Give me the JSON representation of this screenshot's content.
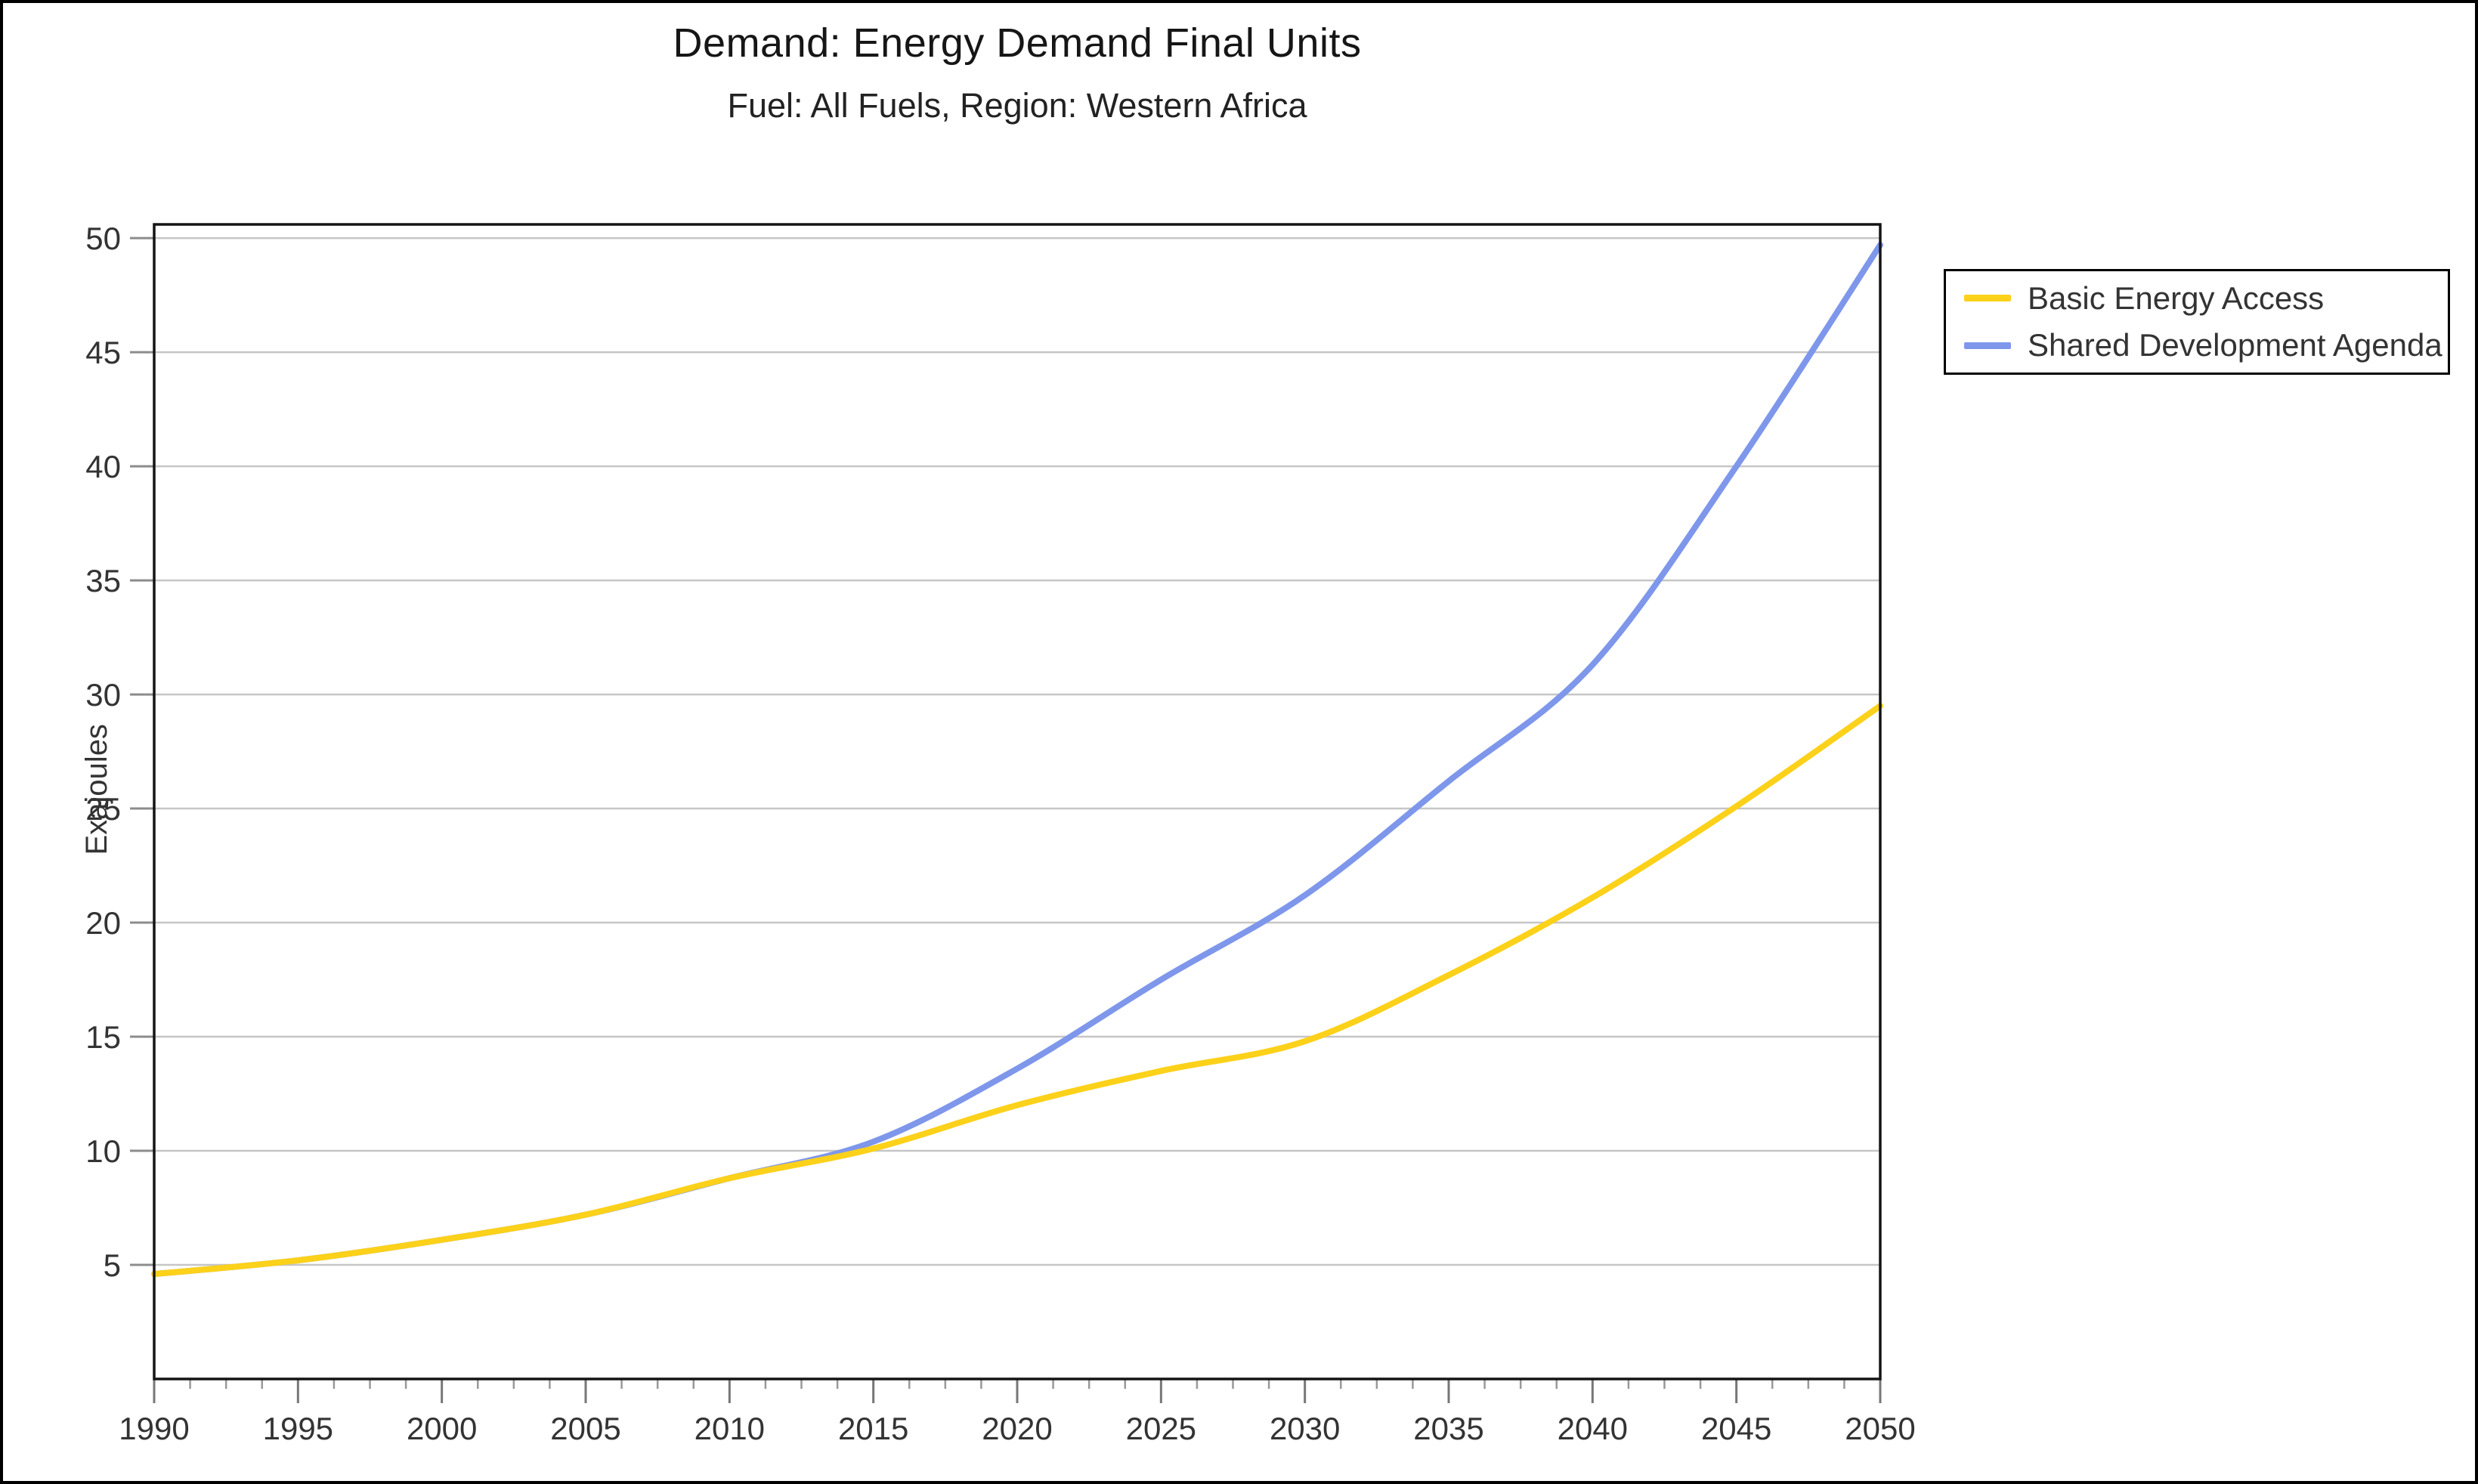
{
  "page": {
    "title": "Demand: Energy Demand Final Units",
    "subtitle": "Fuel: All Fuels, Region: Western Africa"
  },
  "chart_data": {
    "type": "line",
    "title": "Demand: Energy Demand Final Units",
    "subtitle": "Fuel: All Fuels, Region: Western Africa",
    "xlabel": "",
    "ylabel": "Exajoules",
    "x": [
      1990,
      1995,
      2000,
      2005,
      2010,
      2015,
      2020,
      2025,
      2030,
      2035,
      2040,
      2045,
      2050
    ],
    "series": [
      {
        "name": "Basic Energy Access",
        "color": "#FCD11A",
        "values": [
          4.6,
          5.2,
          6.1,
          7.2,
          8.8,
          10.1,
          12.0,
          13.5,
          14.8,
          17.7,
          21.1,
          25.1,
          29.5
        ]
      },
      {
        "name": "Shared Development Agenda",
        "color": "#7E97EB",
        "values": [
          4.6,
          5.2,
          6.1,
          7.2,
          8.8,
          10.4,
          13.6,
          17.5,
          21.2,
          26.2,
          31.3,
          40.0,
          49.7
        ]
      }
    ],
    "x_ticks": [
      1990,
      1995,
      2000,
      2005,
      2010,
      2015,
      2020,
      2025,
      2030,
      2035,
      2040,
      2045,
      2050
    ],
    "y_ticks": [
      5,
      10,
      15,
      20,
      25,
      30,
      35,
      40,
      45,
      50
    ],
    "xlim": [
      1990,
      2050
    ],
    "ylim": [
      0,
      50.6
    ],
    "grid": "horizontal",
    "legend_position": "outside-top-right",
    "colors": {
      "grid_line": "#C6C6C6",
      "tick_mark": "#8C8C8C",
      "axis_box": "#141414",
      "tick_text": "#333333"
    }
  }
}
